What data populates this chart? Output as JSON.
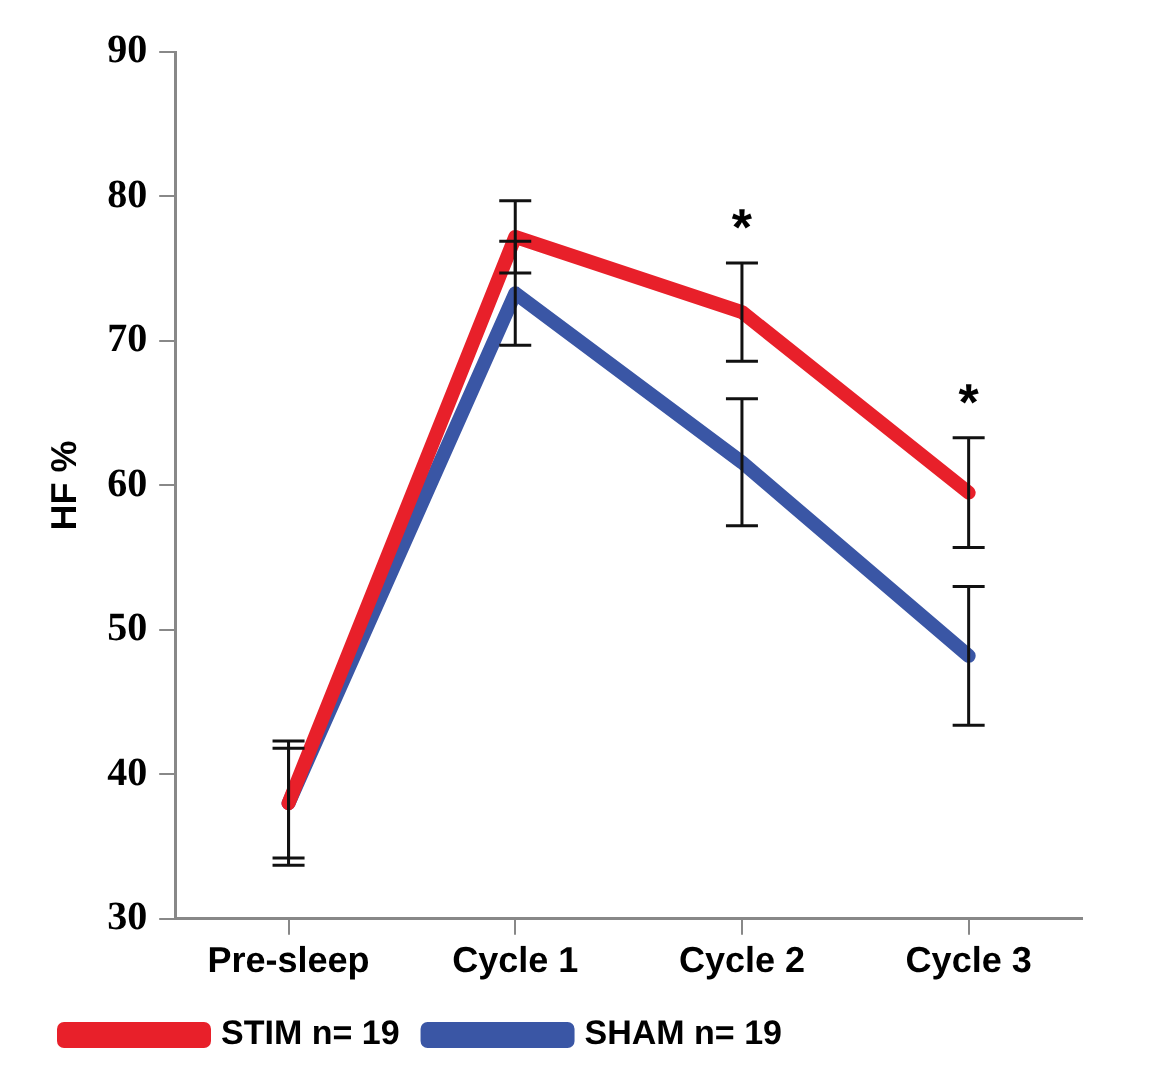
{
  "chart_data": {
    "type": "line",
    "ylabel": "HF %",
    "categories": [
      "Pre-sleep",
      "Cycle 1",
      "Cycle 2",
      "Cycle 3"
    ],
    "series": [
      {
        "name": "STIM n= 19",
        "color": "#e8202a",
        "values": [
          38,
          77.2,
          72,
          59.5
        ],
        "errors": [
          4.3,
          2.5,
          3.4,
          3.8
        ]
      },
      {
        "name": "SHAM n= 19",
        "color": "#3a56a5",
        "values": [
          38,
          73.3,
          61.6,
          48.2
        ],
        "errors": [
          3.8,
          3.6,
          4.4,
          4.8
        ]
      }
    ],
    "annotations": [
      "*",
      "*"
    ],
    "ylim": [
      30,
      90
    ],
    "yticks": [
      30,
      40,
      50,
      60,
      70,
      80,
      90
    ],
    "grid": false,
    "legend": "bottom",
    "marker": "none",
    "line_style": "solid"
  }
}
